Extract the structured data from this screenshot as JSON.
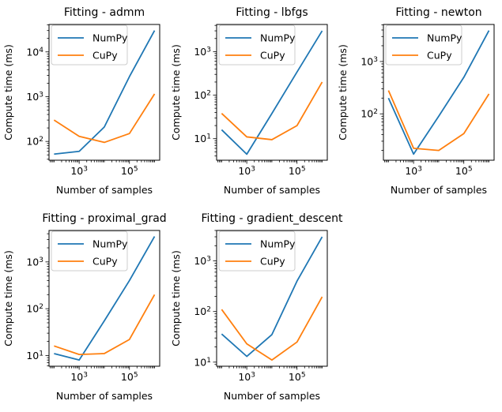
{
  "figure": {
    "background": "#ffffff",
    "text_color": "#000000",
    "spine_color": "#000000",
    "legend_border_color": "#cccccc"
  },
  "chart_data": [
    {
      "type": "line",
      "title": "Fitting - admm",
      "xlabel": "Number of samples",
      "ylabel": "Compute time (ms)",
      "xscale": "log",
      "yscale": "log",
      "grid": false,
      "legend_position": "upper left",
      "x": [
        100,
        1000,
        10000,
        100000,
        1000000
      ],
      "x_major_ticks": [
        1000,
        100000
      ],
      "xlim": [
        63,
        1600000
      ],
      "ylim": [
        38,
        41000
      ],
      "series": [
        {
          "name": "NumPy",
          "color": "#1f77b4",
          "values": [
            52,
            60,
            210,
            2800,
            30000
          ]
        },
        {
          "name": "CuPy",
          "color": "#ff7f0e",
          "values": [
            300,
            130,
            95,
            150,
            1150
          ]
        }
      ]
    },
    {
      "type": "line",
      "title": "Fitting - lbfgs",
      "xlabel": "Number of samples",
      "ylabel": "Compute time (ms)",
      "xscale": "log",
      "yscale": "log",
      "grid": false,
      "legend_position": "upper left",
      "x": [
        100,
        1000,
        10000,
        100000,
        1000000
      ],
      "x_major_ticks": [
        1000,
        100000
      ],
      "xlim": [
        63,
        1600000
      ],
      "ylim": [
        3.2,
        4200
      ],
      "series": [
        {
          "name": "NumPy",
          "color": "#1f77b4",
          "values": [
            16,
            4.4,
            38,
            340,
            3000
          ]
        },
        {
          "name": "CuPy",
          "color": "#ff7f0e",
          "values": [
            38,
            11,
            9.5,
            20,
            200
          ]
        }
      ]
    },
    {
      "type": "line",
      "title": "Fitting - newton",
      "xlabel": "Number of samples",
      "ylabel": "Compute time (ms)",
      "xscale": "log",
      "yscale": "log",
      "grid": false,
      "legend_position": "upper left",
      "x": [
        100,
        1000,
        10000,
        100000,
        1000000
      ],
      "x_major_ticks": [
        1000,
        100000
      ],
      "xlim": [
        63,
        1600000
      ],
      "ylim": [
        13,
        5100
      ],
      "series": [
        {
          "name": "NumPy",
          "color": "#1f77b4",
          "values": [
            200,
            17,
            90,
            500,
            3900
          ]
        },
        {
          "name": "CuPy",
          "color": "#ff7f0e",
          "values": [
            280,
            22,
            20,
            42,
            240
          ]
        }
      ]
    },
    {
      "type": "line",
      "title": "Fitting - proximal_grad",
      "xlabel": "Number of samples",
      "ylabel": "Compute time (ms)",
      "xscale": "log",
      "yscale": "log",
      "grid": false,
      "legend_position": "upper left",
      "x": [
        100,
        1000,
        10000,
        100000,
        1000000
      ],
      "x_major_ticks": [
        1000,
        100000
      ],
      "xlim": [
        63,
        1600000
      ],
      "ylim": [
        5.9,
        4700
      ],
      "series": [
        {
          "name": "NumPy",
          "color": "#1f77b4",
          "values": [
            11,
            8,
            55,
            400,
            3500
          ]
        },
        {
          "name": "CuPy",
          "color": "#ff7f0e",
          "values": [
            16,
            10.5,
            11,
            22,
            200
          ]
        }
      ]
    },
    {
      "type": "line",
      "title": "Fitting - gradient_descent",
      "xlabel": "Number of samples",
      "ylabel": "Compute time (ms)",
      "xscale": "log",
      "yscale": "log",
      "grid": false,
      "legend_position": "upper left",
      "x": [
        100,
        1000,
        10000,
        100000,
        1000000
      ],
      "x_major_ticks": [
        1000,
        100000
      ],
      "xlim": [
        63,
        1600000
      ],
      "ylim": [
        8.3,
        4000
      ],
      "series": [
        {
          "name": "NumPy",
          "color": "#1f77b4",
          "values": [
            36,
            13,
            35,
            400,
            3000
          ]
        },
        {
          "name": "CuPy",
          "color": "#ff7f0e",
          "values": [
            110,
            23,
            11,
            25,
            195
          ]
        }
      ]
    }
  ]
}
